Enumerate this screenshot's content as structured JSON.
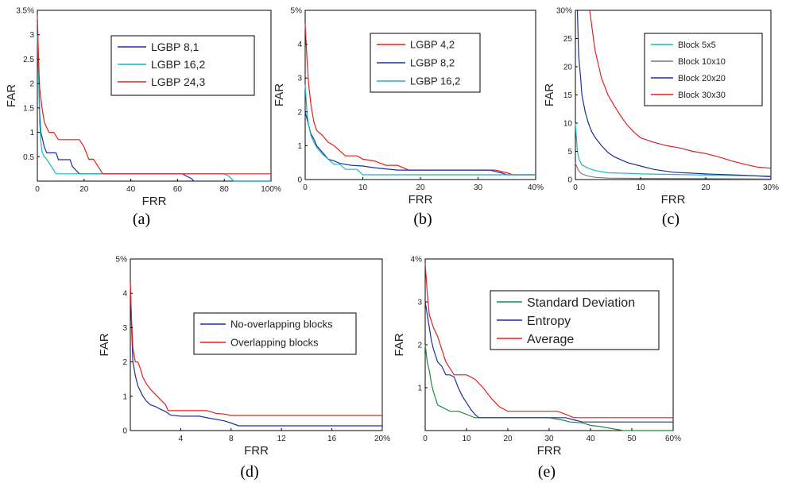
{
  "chart_data": [
    {
      "id": "a",
      "type": "line",
      "panel_label": "(a)",
      "xlabel": "FRR",
      "ylabel": "FAR",
      "xlim": [
        0,
        100
      ],
      "ylim": [
        0,
        3.5
      ],
      "xticks": [
        0,
        20,
        40,
        60,
        80,
        100
      ],
      "xtick_labels": [
        "0",
        "20",
        "40",
        "60",
        "80",
        "100%"
      ],
      "yticks": [
        0.5,
        1,
        1.5,
        2,
        2.5,
        3,
        3.5
      ],
      "ytick_labels": [
        "0.5",
        "1",
        "1.5",
        "2",
        "2.5",
        "3",
        "3.5%"
      ],
      "legend_position": "top-right",
      "series": [
        {
          "name": "LGBP 8,1",
          "color": "#1f2f9c",
          "x": [
            0,
            0.5,
            1,
            1.5,
            2,
            3,
            4,
            8,
            9,
            10,
            14,
            15,
            18,
            62,
            64,
            66,
            67,
            80,
            100
          ],
          "y": [
            3.3,
            2.4,
            1.4,
            1.0,
            0.9,
            0.7,
            0.58,
            0.58,
            0.44,
            0.44,
            0.44,
            0.3,
            0.15,
            0.15,
            0.1,
            0.05,
            0.0,
            0.0,
            0.0
          ]
        },
        {
          "name": "LGBP 16,2",
          "color": "#19b5c0",
          "x": [
            0,
            0.5,
            1,
            1.5,
            2,
            3,
            4,
            6,
            8,
            10,
            12,
            80,
            82,
            84,
            100
          ],
          "y": [
            3.0,
            2.2,
            1.2,
            0.8,
            0.6,
            0.5,
            0.45,
            0.3,
            0.15,
            0.15,
            0.15,
            0.15,
            0.1,
            0.0,
            0.0
          ]
        },
        {
          "name": "LGBP 24,3",
          "color": "#e0201e",
          "x": [
            0,
            0.5,
            1,
            2,
            3,
            5,
            7,
            9,
            12,
            18,
            20,
            22,
            24,
            28,
            66,
            100
          ],
          "y": [
            3.4,
            2.5,
            1.9,
            1.5,
            1.2,
            1.0,
            1.0,
            0.85,
            0.85,
            0.85,
            0.7,
            0.45,
            0.45,
            0.15,
            0.15,
            0.15
          ]
        }
      ]
    },
    {
      "id": "b",
      "type": "line",
      "panel_label": "(b)",
      "xlabel": "FRR",
      "ylabel": "FAR",
      "xlim": [
        0,
        40
      ],
      "ylim": [
        0,
        5
      ],
      "xticks": [
        0,
        10,
        20,
        30,
        40
      ],
      "xtick_labels": [
        "0",
        "10",
        "20",
        "30",
        "40%"
      ],
      "yticks": [
        0,
        1,
        2,
        3,
        4,
        5
      ],
      "ytick_labels": [
        "0",
        "1",
        "2",
        "3",
        "4",
        "5%"
      ],
      "legend_position": "top-right",
      "series": [
        {
          "name": "LGBP  4,2",
          "color": "#e0201e",
          "x": [
            0,
            0.3,
            0.6,
            1,
            1.5,
            2,
            3,
            4,
            5,
            6,
            7,
            9,
            10,
            12,
            14,
            16,
            18,
            33,
            35,
            36,
            40
          ],
          "y": [
            4.6,
            3.6,
            2.8,
            2.2,
            1.7,
            1.45,
            1.3,
            1.1,
            1.0,
            0.85,
            0.7,
            0.7,
            0.6,
            0.55,
            0.42,
            0.42,
            0.28,
            0.28,
            0.2,
            0.14,
            0.14
          ]
        },
        {
          "name": "LGBP  8,2",
          "color": "#1f2f9c",
          "x": [
            0,
            0.3,
            0.6,
            1,
            1.5,
            2,
            3,
            4,
            5,
            6,
            8,
            10,
            12,
            16,
            32,
            34,
            35,
            40
          ],
          "y": [
            2.0,
            1.8,
            1.6,
            1.35,
            1.2,
            1.0,
            0.8,
            0.6,
            0.55,
            0.48,
            0.42,
            0.4,
            0.35,
            0.28,
            0.28,
            0.2,
            0.14,
            0.14
          ]
        },
        {
          "name": "LGBP  16,2",
          "color": "#19b5c0",
          "x": [
            0,
            0.3,
            0.6,
            1,
            1.5,
            2,
            3,
            4,
            5,
            6,
            7,
            8,
            9,
            10,
            35,
            40
          ],
          "y": [
            2.8,
            2.0,
            1.6,
            1.3,
            1.1,
            0.95,
            0.75,
            0.6,
            0.45,
            0.45,
            0.3,
            0.3,
            0.3,
            0.14,
            0.14,
            0.14
          ]
        }
      ]
    },
    {
      "id": "c",
      "type": "line",
      "panel_label": "(c)",
      "xlabel": "FRR",
      "ylabel": "FAR",
      "xlim": [
        0,
        30
      ],
      "ylim": [
        0,
        30
      ],
      "xticks": [
        0,
        10,
        20,
        30
      ],
      "xtick_labels": [
        "0",
        "10",
        "20",
        "30%"
      ],
      "yticks": [
        0,
        5,
        10,
        15,
        20,
        25,
        30
      ],
      "ytick_labels": [
        "0",
        "5",
        "10",
        "15",
        "20",
        "25",
        "30%"
      ],
      "legend_position": "top-right",
      "series": [
        {
          "name": "Block 5x5",
          "color": "#19b5c0",
          "x": [
            0,
            0.3,
            0.6,
            1,
            2,
            3,
            5,
            8,
            10,
            15,
            20,
            25,
            30
          ],
          "y": [
            10,
            5.0,
            3.5,
            2.6,
            2.0,
            1.6,
            1.2,
            1.1,
            1.0,
            0.9,
            0.8,
            0.7,
            0.6
          ]
        },
        {
          "name": "Block 10x10",
          "color": "#7a7a7a",
          "x": [
            0,
            0.3,
            0.6,
            1,
            2,
            3,
            5,
            10,
            20,
            30
          ],
          "y": [
            3.0,
            2.0,
            1.4,
            1.0,
            0.6,
            0.4,
            0.25,
            0.2,
            0.15,
            0.1
          ]
        },
        {
          "name": "Block 20x20",
          "color": "#1f2f9c",
          "x": [
            0.3,
            0.5,
            0.8,
            1,
            1.5,
            2,
            2.5,
            3,
            4,
            5,
            6,
            8,
            10,
            12,
            15,
            20,
            25,
            30
          ],
          "y": [
            30,
            22,
            18,
            15,
            12,
            10,
            8.5,
            7.5,
            6.0,
            4.8,
            4.0,
            3.0,
            2.4,
            1.8,
            1.3,
            1.0,
            0.8,
            0.5
          ]
        },
        {
          "name": "Block 30x30",
          "color": "#e0201e",
          "x": [
            2.2,
            3,
            4,
            5,
            6,
            7,
            8,
            9,
            10,
            12,
            14,
            16,
            18,
            20,
            22,
            24,
            26,
            28,
            30
          ],
          "y": [
            30,
            23,
            18,
            15,
            13,
            11.2,
            9.6,
            8.4,
            7.4,
            6.6,
            6.0,
            5.6,
            5.0,
            4.6,
            4.0,
            3.3,
            2.7,
            2.2,
            2.0
          ]
        }
      ]
    },
    {
      "id": "d",
      "type": "line",
      "panel_label": "(d)",
      "xlabel": "FRR",
      "ylabel": "FAR",
      "xlim": [
        0,
        20
      ],
      "ylim": [
        0,
        5
      ],
      "xticks": [
        4,
        8,
        12,
        16,
        20
      ],
      "xtick_labels": [
        "4",
        "8",
        "12",
        "16",
        "20%"
      ],
      "yticks": [
        0,
        1,
        2,
        3,
        4,
        5
      ],
      "ytick_labels": [
        "0",
        "1",
        "2",
        "3",
        "4",
        "5%"
      ],
      "legend_position": "right",
      "series": [
        {
          "name": "No-overlapping blocks",
          "color": "#1f2f9c",
          "x": [
            0,
            0.1,
            0.2,
            0.4,
            0.6,
            0.8,
            1.0,
            1.3,
            1.6,
            2.0,
            2.4,
            2.8,
            3.2,
            4.0,
            5.5,
            6.0,
            7.5,
            8.0,
            8.6,
            20
          ],
          "y": [
            4.3,
            3.0,
            2.0,
            1.6,
            1.3,
            1.15,
            1.0,
            0.85,
            0.75,
            0.7,
            0.62,
            0.55,
            0.45,
            0.42,
            0.42,
            0.38,
            0.28,
            0.22,
            0.14,
            0.14
          ]
        },
        {
          "name": "Overlapping blocks",
          "color": "#e0201e",
          "x": [
            0,
            0.1,
            0.2,
            0.4,
            0.6,
            0.8,
            1.0,
            1.3,
            1.6,
            2.0,
            2.4,
            2.8,
            3.0,
            6.0,
            6.4,
            6.8,
            7.5,
            8.0,
            20
          ],
          "y": [
            4.3,
            3.2,
            2.4,
            2.0,
            2.0,
            1.8,
            1.55,
            1.35,
            1.2,
            1.05,
            0.9,
            0.75,
            0.58,
            0.58,
            0.55,
            0.5,
            0.48,
            0.44,
            0.44
          ]
        }
      ]
    },
    {
      "id": "e",
      "type": "line",
      "panel_label": "(e)",
      "xlabel": "FRR",
      "ylabel": "FAR",
      "xlim": [
        0,
        60
      ],
      "ylim": [
        0,
        4
      ],
      "xticks": [
        0,
        10,
        20,
        30,
        40,
        50,
        60
      ],
      "xtick_labels": [
        "0",
        "10",
        "20",
        "30",
        "40",
        "50",
        "60%"
      ],
      "yticks": [
        1,
        2,
        3,
        4
      ],
      "ytick_labels": [
        "1",
        "2",
        "3",
        "4%"
      ],
      "legend_position": "top-right",
      "series": [
        {
          "name": "Standard Deviation",
          "color": "#1e8a3a",
          "x": [
            0,
            0.5,
            1,
            1.5,
            2,
            3,
            4,
            5,
            6,
            8,
            10,
            12,
            13,
            30,
            33,
            35,
            38,
            40,
            42,
            45,
            48,
            60
          ],
          "y": [
            2.0,
            1.6,
            1.4,
            1.1,
            0.9,
            0.6,
            0.55,
            0.5,
            0.45,
            0.45,
            0.38,
            0.3,
            0.3,
            0.3,
            0.25,
            0.2,
            0.18,
            0.12,
            0.1,
            0.05,
            0.0,
            0.0
          ]
        },
        {
          "name": "Entropy",
          "color": "#1f2f9c",
          "x": [
            0,
            0.5,
            1,
            1.5,
            2,
            3,
            4,
            5,
            6,
            7,
            8,
            9,
            10,
            11,
            12,
            13,
            34,
            36,
            38,
            60
          ],
          "y": [
            3.0,
            2.7,
            2.4,
            2.1,
            1.9,
            1.6,
            1.5,
            1.3,
            1.3,
            1.25,
            1.0,
            0.8,
            0.65,
            0.5,
            0.38,
            0.3,
            0.3,
            0.25,
            0.2,
            0.2
          ]
        },
        {
          "name": "Average",
          "color": "#e0201e",
          "x": [
            0,
            0.5,
            1,
            2,
            3,
            4,
            5,
            6,
            7,
            8,
            10,
            12,
            14,
            16,
            18,
            20,
            24,
            28,
            32,
            34,
            36,
            60
          ],
          "y": [
            3.9,
            3.2,
            2.7,
            2.4,
            2.2,
            1.9,
            1.6,
            1.45,
            1.3,
            1.3,
            1.3,
            1.2,
            1.0,
            0.75,
            0.55,
            0.45,
            0.45,
            0.45,
            0.45,
            0.38,
            0.3,
            0.3
          ]
        }
      ]
    }
  ]
}
